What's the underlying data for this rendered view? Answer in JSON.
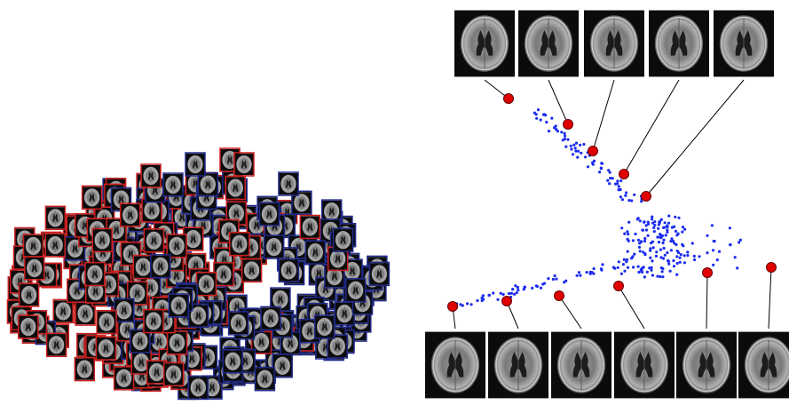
{
  "figure": {
    "left_panel": {
      "name": "montage-embedding",
      "thumbnail_frame_colors": [
        "#cc1f1f",
        "#1f2a8a"
      ],
      "thumbnail_count": 340
    },
    "right_panel": {
      "name": "manifold-embedding",
      "point_color": "#1a2cf0",
      "marker_color": "#e00000",
      "top_thumbnail_count": 5,
      "bottom_thumbnail_count": 6
    }
  }
}
